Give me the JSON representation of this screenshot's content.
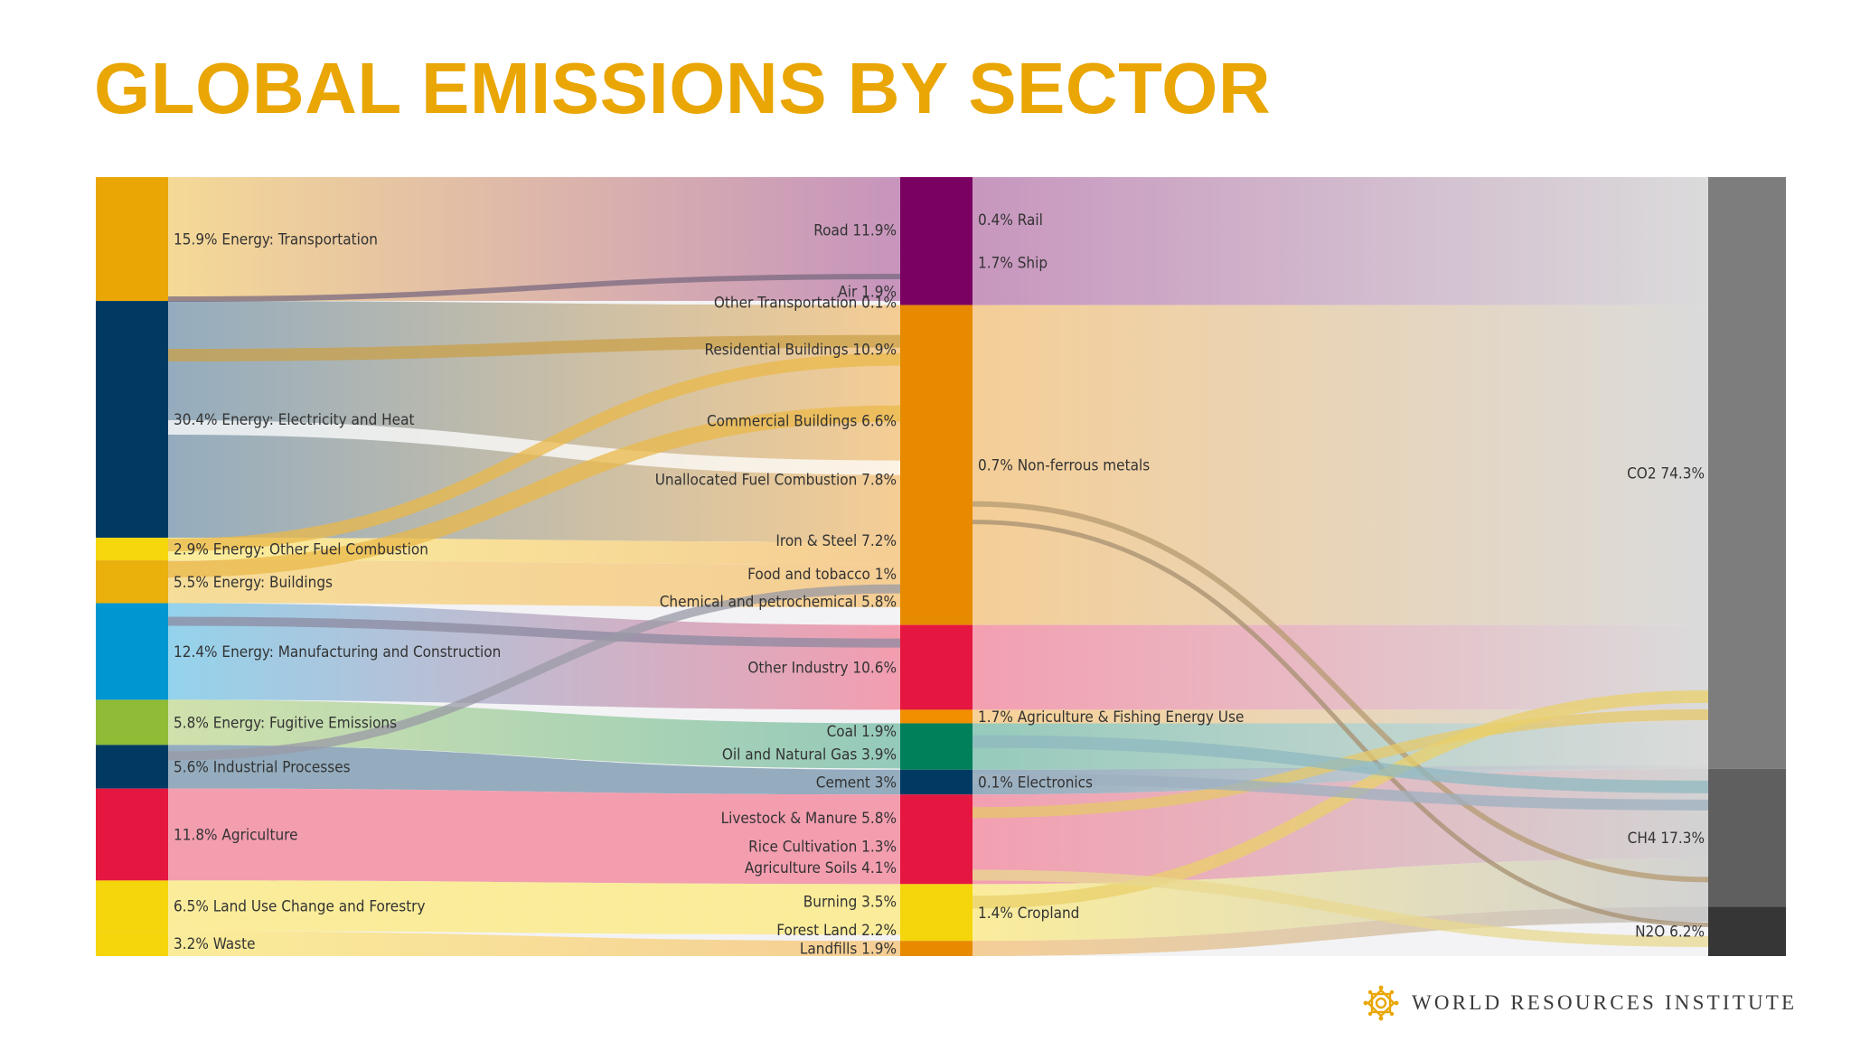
{
  "title": "GLOBAL EMISSIONS BY SECTOR",
  "footer": {
    "organization": "WORLD RESOURCES INSTITUTE",
    "logo_icon": "wri-star-logo-icon"
  },
  "colors": {
    "title": "#e9a604",
    "sector_colors": {
      "transport": "#e9a604",
      "electricity": "#003a63",
      "otherfuel": "#f6d60c",
      "buildings": "#eab00b",
      "manufacturing": "#0096d2",
      "fugitive": "#8fbb37",
      "industrial": "#003a63",
      "agriculture": "#e5163f",
      "landuse": "#f5d50c",
      "waste": "#f5d50c"
    },
    "middle_colors": {
      "transport": "#7a0061",
      "energy": "#e88a00",
      "industry": "#e5163f",
      "agfish": "#f28f00",
      "fugitive": "#00805a",
      "industrial": "#003a63",
      "agriculture": "#e5163f",
      "landuse": "#f5d50c",
      "waste": "#e88a00"
    },
    "gas_colors": {
      "co2": "#7d7d7d",
      "ch4": "#5f5f5f",
      "n2o": "#363636"
    }
  },
  "sectors": [
    {
      "id": "transport",
      "label": "15.9%  Energy: Transportation",
      "value": 15.9
    },
    {
      "id": "electricity",
      "label": "30.4%  Energy: Electricity and Heat",
      "value": 30.4
    },
    {
      "id": "otherfuel",
      "label": "2.9%  Energy: Other Fuel Combustion",
      "value": 2.9
    },
    {
      "id": "buildings",
      "label": "5.5%  Energy: Buildings",
      "value": 5.5
    },
    {
      "id": "manufacturing",
      "label": "12.4%  Energy: Manufacturing and Construction",
      "value": 12.4
    },
    {
      "id": "fugitive",
      "label": "5.8%  Energy: Fugitive Emissions",
      "value": 5.8
    },
    {
      "id": "industrial",
      "label": "5.6%  Industrial Processes",
      "value": 5.6
    },
    {
      "id": "agriculture",
      "label": "11.8%  Agriculture",
      "value": 11.8
    },
    {
      "id": "landuse",
      "label": "6.5%  Land Use Change and Forestry",
      "value": 6.5
    },
    {
      "id": "waste",
      "label": "3.2%  Waste",
      "value": 3.2
    }
  ],
  "subsectors": [
    {
      "label": "Road  11.9%",
      "value": 11.9,
      "group": "transport"
    },
    {
      "label": "Air  1.9%",
      "value": 1.9,
      "group": "transport"
    },
    {
      "label": "Other Transportation  0.1%",
      "value": 0.1,
      "group": "transport"
    },
    {
      "label": "0.4%  Rail",
      "value": 0.4,
      "group": "transport",
      "side": "right"
    },
    {
      "label": "1.7%  Ship",
      "value": 1.7,
      "group": "transport",
      "side": "right"
    },
    {
      "label": "Residential Buildings  10.9%",
      "value": 10.9,
      "group": "energy"
    },
    {
      "label": "Commercial Buildings  6.6%",
      "value": 6.6,
      "group": "energy"
    },
    {
      "label": "Unallocated Fuel Combustion  7.8%",
      "value": 7.8,
      "group": "energy"
    },
    {
      "label": "Iron & Steel  7.2%",
      "value": 7.2,
      "group": "energy"
    },
    {
      "label": "0.7%  Non-ferrous metals",
      "value": 0.7,
      "group": "energy",
      "side": "right"
    },
    {
      "label": "Food and tobacco  1%",
      "value": 1,
      "group": "energy"
    },
    {
      "label": "Chemical and petrochemical  5.8%",
      "value": 5.8,
      "group": "energy"
    },
    {
      "label": "Other Industry  10.6%",
      "value": 10.6,
      "group": "industry"
    },
    {
      "label": "1.7%  Agriculture & Fishing Energy Use",
      "value": 1.7,
      "group": "agfish",
      "side": "right"
    },
    {
      "label": "Coal  1.9%",
      "value": 1.9,
      "group": "fugitive"
    },
    {
      "label": "Oil and Natural Gas  3.9%",
      "value": 3.9,
      "group": "fugitive"
    },
    {
      "label": "Cement  3%",
      "value": 3,
      "group": "industrial"
    },
    {
      "label": "0.1%  Electronics",
      "value": 0.1,
      "group": "industrial",
      "side": "right"
    },
    {
      "label": "Livestock & Manure  5.8%",
      "value": 5.8,
      "group": "agriculture"
    },
    {
      "label": "Rice Cultivation  1.3%",
      "value": 1.3,
      "group": "agriculture"
    },
    {
      "label": "Agriculture Soils  4.1%",
      "value": 4.1,
      "group": "agriculture"
    },
    {
      "label": "1.4%  Cropland",
      "value": 1.4,
      "group": "landuse",
      "side": "right"
    },
    {
      "label": "Burning  3.5%",
      "value": 3.5,
      "group": "landuse"
    },
    {
      "label": "Forest Land  2.2%",
      "value": 2.2,
      "group": "landuse"
    },
    {
      "label": "Landfills  1.9%",
      "value": 1.9,
      "group": "waste"
    }
  ],
  "gases": [
    {
      "id": "co2",
      "label": "CO2  74.3%",
      "value": 74.3
    },
    {
      "id": "ch4",
      "label": "CH4  17.3%",
      "value": 17.3
    },
    {
      "id": "n2o",
      "label": "N2O  6.2%",
      "value": 6.2
    }
  ]
}
